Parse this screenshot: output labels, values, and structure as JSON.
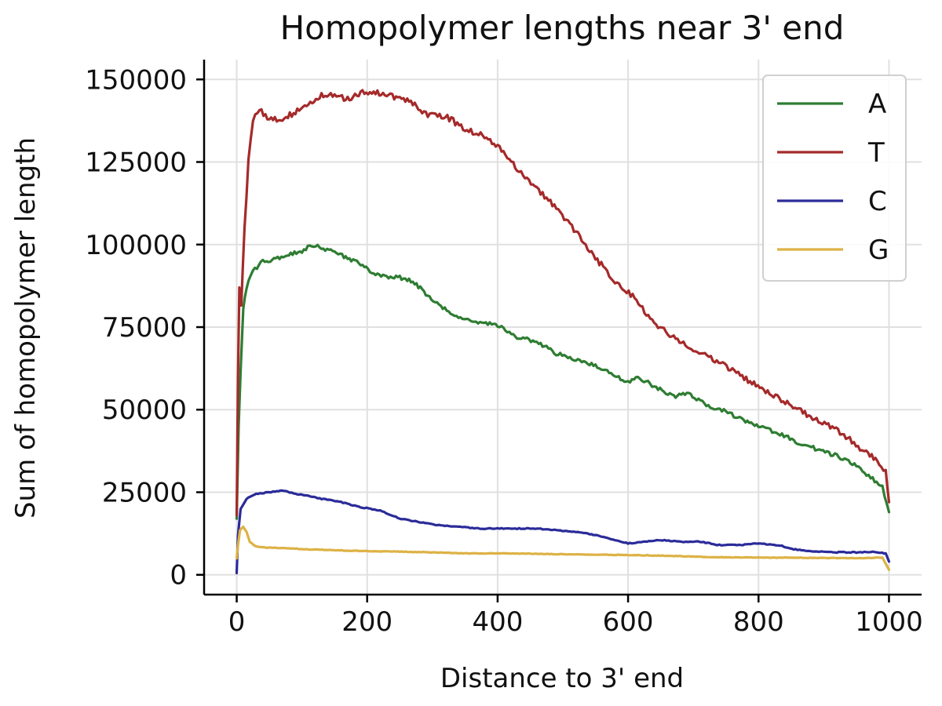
{
  "chart_data": {
    "type": "line",
    "title": "Homopolymer lengths near 3' end",
    "xlabel": "Distance to 3' end",
    "ylabel": "Sum of homopolymer length",
    "xlim": [
      -50,
      1050
    ],
    "ylim": [
      -6000,
      156000
    ],
    "x_ticks": [
      0,
      200,
      400,
      600,
      800,
      1000
    ],
    "y_ticks": [
      0,
      25000,
      50000,
      75000,
      100000,
      125000,
      150000
    ],
    "grid": true,
    "legend_position": "top-right",
    "series": [
      {
        "name": "A",
        "color": "#2e7d32",
        "points": [
          [
            0,
            17000
          ],
          [
            3,
            45000
          ],
          [
            6,
            62000
          ],
          [
            10,
            80000
          ],
          [
            15,
            87000
          ],
          [
            25,
            92000
          ],
          [
            40,
            95000
          ],
          [
            60,
            95500
          ],
          [
            80,
            97000
          ],
          [
            100,
            98000
          ],
          [
            115,
            100000
          ],
          [
            130,
            99000
          ],
          [
            150,
            97500
          ],
          [
            170,
            96000
          ],
          [
            190,
            94000
          ],
          [
            210,
            91500
          ],
          [
            230,
            90000
          ],
          [
            250,
            90000
          ],
          [
            270,
            89000
          ],
          [
            290,
            85000
          ],
          [
            310,
            81500
          ],
          [
            340,
            78000
          ],
          [
            370,
            76500
          ],
          [
            400,
            75500
          ],
          [
            430,
            72000
          ],
          [
            460,
            70500
          ],
          [
            490,
            67000
          ],
          [
            520,
            65000
          ],
          [
            550,
            63500
          ],
          [
            580,
            60000
          ],
          [
            600,
            58500
          ],
          [
            615,
            60000
          ],
          [
            640,
            57000
          ],
          [
            670,
            54000
          ],
          [
            690,
            55000
          ],
          [
            720,
            51500
          ],
          [
            750,
            49500
          ],
          [
            780,
            46500
          ],
          [
            800,
            45000
          ],
          [
            830,
            43000
          ],
          [
            860,
            40000
          ],
          [
            890,
            38000
          ],
          [
            920,
            36000
          ],
          [
            950,
            33000
          ],
          [
            975,
            29000
          ],
          [
            990,
            26500
          ],
          [
            1000,
            19000
          ]
        ]
      },
      {
        "name": "T",
        "color": "#a52a2a",
        "points": [
          [
            0,
            18000
          ],
          [
            2,
            60000
          ],
          [
            4,
            87000
          ],
          [
            7,
            82000
          ],
          [
            12,
            105000
          ],
          [
            18,
            125000
          ],
          [
            25,
            138000
          ],
          [
            35,
            141000
          ],
          [
            50,
            138000
          ],
          [
            70,
            138000
          ],
          [
            90,
            140000
          ],
          [
            110,
            143000
          ],
          [
            130,
            145000
          ],
          [
            150,
            145000
          ],
          [
            170,
            144000
          ],
          [
            190,
            146000
          ],
          [
            210,
            146500
          ],
          [
            230,
            145000
          ],
          [
            250,
            144500
          ],
          [
            270,
            143000
          ],
          [
            290,
            139500
          ],
          [
            320,
            139000
          ],
          [
            350,
            135000
          ],
          [
            380,
            133000
          ],
          [
            400,
            130000
          ],
          [
            430,
            123000
          ],
          [
            460,
            117000
          ],
          [
            490,
            111000
          ],
          [
            520,
            104000
          ],
          [
            550,
            96000
          ],
          [
            580,
            89000
          ],
          [
            610,
            84000
          ],
          [
            640,
            76000
          ],
          [
            670,
            72000
          ],
          [
            700,
            68500
          ],
          [
            730,
            65500
          ],
          [
            760,
            62000
          ],
          [
            790,
            58000
          ],
          [
            820,
            55000
          ],
          [
            850,
            51000
          ],
          [
            880,
            48000
          ],
          [
            910,
            45000
          ],
          [
            940,
            41000
          ],
          [
            965,
            37000
          ],
          [
            985,
            34000
          ],
          [
            995,
            31000
          ],
          [
            1000,
            22000
          ]
        ]
      },
      {
        "name": "C",
        "color": "#2b2b9a",
        "points": [
          [
            0,
            500
          ],
          [
            2,
            12000
          ],
          [
            6,
            20000
          ],
          [
            15,
            23000
          ],
          [
            30,
            24500
          ],
          [
            50,
            25000
          ],
          [
            70,
            25500
          ],
          [
            90,
            24500
          ],
          [
            110,
            24000
          ],
          [
            130,
            23000
          ],
          [
            160,
            22000
          ],
          [
            190,
            20500
          ],
          [
            220,
            19500
          ],
          [
            250,
            17000
          ],
          [
            280,
            16000
          ],
          [
            310,
            15000
          ],
          [
            340,
            14500
          ],
          [
            370,
            14000
          ],
          [
            400,
            14000
          ],
          [
            430,
            14000
          ],
          [
            460,
            14000
          ],
          [
            490,
            13500
          ],
          [
            520,
            13000
          ],
          [
            550,
            12000
          ],
          [
            580,
            10500
          ],
          [
            600,
            9500
          ],
          [
            620,
            10000
          ],
          [
            650,
            10500
          ],
          [
            680,
            10000
          ],
          [
            710,
            10000
          ],
          [
            740,
            9000
          ],
          [
            770,
            9000
          ],
          [
            800,
            9500
          ],
          [
            830,
            9000
          ],
          [
            860,
            7500
          ],
          [
            890,
            7000
          ],
          [
            920,
            6800
          ],
          [
            950,
            6800
          ],
          [
            975,
            6900
          ],
          [
            995,
            6500
          ],
          [
            1000,
            4000
          ]
        ]
      },
      {
        "name": "G",
        "color": "#ddb245",
        "points": [
          [
            0,
            5000
          ],
          [
            2,
            9000
          ],
          [
            5,
            13500
          ],
          [
            10,
            14500
          ],
          [
            15,
            13000
          ],
          [
            20,
            10000
          ],
          [
            30,
            8500
          ],
          [
            50,
            8200
          ],
          [
            80,
            8000
          ],
          [
            110,
            7700
          ],
          [
            140,
            7500
          ],
          [
            170,
            7300
          ],
          [
            200,
            7200
          ],
          [
            250,
            7000
          ],
          [
            300,
            6800
          ],
          [
            350,
            6500
          ],
          [
            400,
            6500
          ],
          [
            450,
            6400
          ],
          [
            500,
            6200
          ],
          [
            550,
            6100
          ],
          [
            600,
            6000
          ],
          [
            650,
            5800
          ],
          [
            700,
            5500
          ],
          [
            750,
            5300
          ],
          [
            800,
            5200
          ],
          [
            850,
            5200
          ],
          [
            900,
            5100
          ],
          [
            950,
            5000
          ],
          [
            990,
            5200
          ],
          [
            1000,
            1500
          ]
        ]
      }
    ]
  }
}
